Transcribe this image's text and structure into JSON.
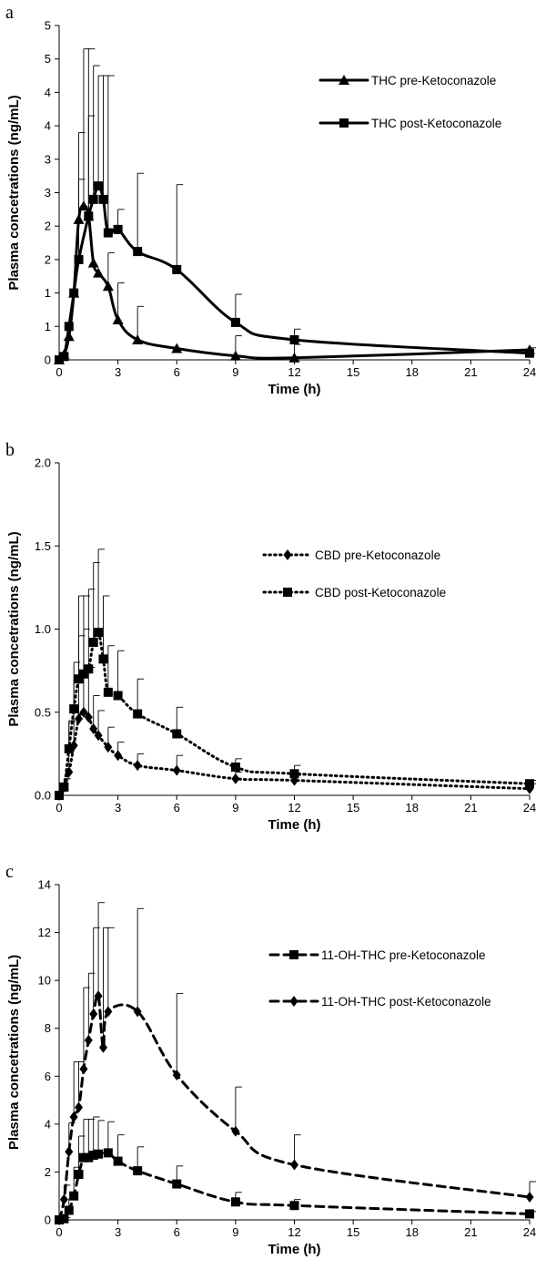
{
  "chart_data": [
    {
      "panel": "a",
      "type": "line",
      "xlabel": "Time (h)",
      "ylabel": "Plasma concetrations (ng/mL)",
      "xlim": [
        0,
        24
      ],
      "ylim": [
        0,
        5
      ],
      "xticks": [
        0,
        3,
        6,
        9,
        12,
        15,
        18,
        21,
        24
      ],
      "xticklabels": [
        "0",
        "3",
        "6",
        "9",
        "12",
        "15",
        "18",
        "21",
        "24"
      ],
      "yticks": [
        0,
        0.5,
        1,
        1.5,
        2,
        2.5,
        3,
        3.5,
        4,
        4.5,
        5
      ],
      "yticklabels": [
        "0",
        "1",
        "1",
        "2",
        "2",
        "3",
        "3",
        "4",
        "4",
        "5",
        "5"
      ],
      "grid": false,
      "legend_position": "top-right",
      "series": [
        {
          "name": "THC pre-Ketoconazole",
          "line_style": "solid",
          "marker": "triangle",
          "x": [
            0,
            0.25,
            0.5,
            0.75,
            1,
            1.25,
            1.5,
            1.75,
            2,
            2.5,
            3,
            4,
            6,
            9,
            12,
            24
          ],
          "y": [
            0,
            0.08,
            0.35,
            1.0,
            2.1,
            2.3,
            2.15,
            1.45,
            1.3,
            1.1,
            0.6,
            0.3,
            0.17,
            0.06,
            0.03,
            0.15
          ],
          "err": [
            0,
            0,
            0,
            0,
            0.6,
            2.35,
            1.5,
            0.0,
            0.0,
            0.5,
            0.55,
            0.5,
            0.0,
            0.3,
            0.2,
            0
          ]
        },
        {
          "name": "THC post-Ketoconazole",
          "line_style": "solid",
          "marker": "square",
          "x": [
            0,
            0.25,
            0.5,
            0.75,
            1,
            1.5,
            1.75,
            2,
            2.25,
            2.5,
            3,
            4,
            6,
            9,
            12,
            24
          ],
          "y": [
            0,
            0.05,
            0.5,
            1.0,
            1.5,
            2.15,
            2.4,
            2.6,
            2.4,
            1.9,
            1.95,
            1.62,
            1.35,
            0.56,
            0.3,
            0.1
          ],
          "err": [
            0,
            0,
            0,
            0,
            1.9,
            2.5,
            2.0,
            1.65,
            1.85,
            2.35,
            0.3,
            1.17,
            1.27,
            0.42,
            0.16,
            0.08
          ]
        }
      ]
    },
    {
      "panel": "b",
      "type": "line",
      "xlabel": "Time (h)",
      "ylabel": "Plasma concetrations (ng/mL)",
      "xlim": [
        0,
        24
      ],
      "ylim": [
        0,
        2
      ],
      "xticks": [
        0,
        3,
        6,
        9,
        12,
        15,
        18,
        21,
        24
      ],
      "xticklabels": [
        "0",
        "3",
        "6",
        "9",
        "12",
        "15",
        "18",
        "21",
        "24"
      ],
      "yticks": [
        0,
        0.5,
        1,
        1.5,
        2
      ],
      "yticklabels": [
        "0.0",
        "0.5",
        "1.0",
        "1.5",
        "2.0"
      ],
      "grid": false,
      "legend_position": "top-right",
      "series": [
        {
          "name": "CBD pre-Ketoconazole",
          "line_style": "dotted",
          "marker": "diamond",
          "x": [
            0,
            0.25,
            0.5,
            0.75,
            1,
            1.25,
            1.5,
            1.75,
            2,
            2.5,
            3,
            4,
            6,
            9,
            12,
            24
          ],
          "y": [
            0,
            0.05,
            0.14,
            0.3,
            0.46,
            0.5,
            0.47,
            0.4,
            0.36,
            0.29,
            0.24,
            0.18,
            0.15,
            0.1,
            0.09,
            0.04
          ],
          "err": [
            0,
            0.05,
            0.3,
            0.4,
            0.5,
            0.5,
            0.3,
            0.2,
            0.15,
            0.12,
            0.08,
            0.07,
            0.09,
            0.04,
            0.03,
            0.03
          ]
        },
        {
          "name": "CBD post-Ketoconazole",
          "line_style": "dotted",
          "marker": "square",
          "x": [
            0,
            0.25,
            0.5,
            0.75,
            1,
            1.25,
            1.5,
            1.75,
            2,
            2.25,
            2.5,
            3,
            4,
            6,
            9,
            12,
            24
          ],
          "y": [
            0,
            0.05,
            0.28,
            0.52,
            0.7,
            0.73,
            0.76,
            0.92,
            0.98,
            0.82,
            0.62,
            0.6,
            0.49,
            0.37,
            0.17,
            0.13,
            0.07
          ],
          "err": [
            0,
            0.05,
            0.17,
            0.28,
            0.5,
            0.47,
            0.48,
            0.48,
            0.5,
            0.38,
            0.28,
            0.27,
            0.21,
            0.16,
            0.05,
            0.05,
            0.02
          ]
        }
      ]
    },
    {
      "panel": "c",
      "type": "line",
      "xlabel": "Time (h)",
      "ylabel": "Plasma concetrations (ng/mL)",
      "xlim": [
        0,
        24
      ],
      "ylim": [
        0,
        14
      ],
      "xticks": [
        0,
        3,
        6,
        9,
        12,
        15,
        18,
        21,
        24
      ],
      "xticklabels": [
        "0",
        "3",
        "6",
        "9",
        "12",
        "15",
        "18",
        "21",
        "24"
      ],
      "yticks": [
        0,
        2,
        4,
        6,
        8,
        10,
        12,
        14
      ],
      "yticklabels": [
        "0",
        "2",
        "4",
        "6",
        "8",
        "10",
        "12",
        "14"
      ],
      "grid": false,
      "legend_position": "top-right",
      "series": [
        {
          "name": "11-OH-THC pre-Ketoconazole",
          "line_style": "dashed",
          "marker": "square",
          "x": [
            0,
            0.25,
            0.5,
            0.75,
            1,
            1.25,
            1.5,
            1.75,
            2,
            2.5,
            3,
            4,
            6,
            9,
            12,
            24
          ],
          "y": [
            0,
            0.05,
            0.4,
            1.0,
            1.9,
            2.6,
            2.6,
            2.7,
            2.75,
            2.8,
            2.45,
            2.05,
            1.5,
            0.75,
            0.6,
            0.25
          ],
          "err": [
            0,
            0.05,
            0.5,
            1.2,
            1.6,
            1.6,
            1.6,
            1.6,
            1.4,
            1.3,
            1.1,
            1.0,
            0.75,
            0.4,
            0.25,
            0.1
          ]
        },
        {
          "name": "11-OH-THC post-Ketoconazole",
          "line_style": "dashed",
          "marker": "diamond",
          "x": [
            0,
            0.25,
            0.5,
            0.75,
            1,
            1.25,
            1.5,
            1.75,
            2,
            2.25,
            2.5,
            4,
            6,
            9,
            12,
            24
          ],
          "y": [
            0,
            0.85,
            2.85,
            4.3,
            4.7,
            6.3,
            7.5,
            8.6,
            9.35,
            7.2,
            8.7,
            8.7,
            6.05,
            3.7,
            2.3,
            0.95
          ],
          "err": [
            0,
            0.6,
            1.2,
            2.3,
            1.9,
            3.4,
            2.8,
            3.6,
            3.9,
            5.0,
            3.5,
            4.3,
            3.4,
            1.85,
            1.25,
            0.65
          ]
        }
      ]
    }
  ]
}
